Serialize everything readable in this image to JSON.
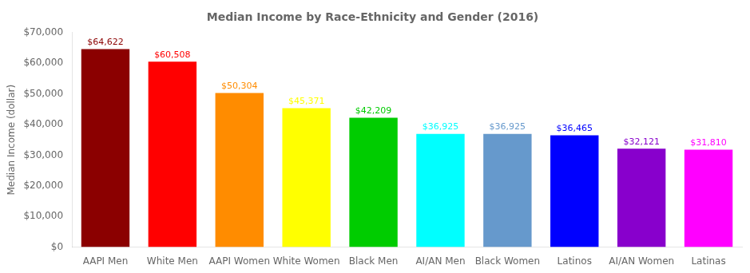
{
  "chart_data": {
    "type": "bar",
    "title": "Median Income by Race-Ethnicity and Gender (2016)",
    "ylabel": "Median Income (dollar)",
    "categories": [
      "AAPI Men",
      "White Men",
      "AAPI Women",
      "White Women",
      "Black Men",
      "AI/AN Men",
      "Black Women",
      "Latinos",
      "AI/AN Women",
      "Latinas"
    ],
    "values": [
      64622,
      60508,
      50304,
      45371,
      42209,
      36925,
      36925,
      36465,
      32121,
      31810
    ],
    "value_labels": [
      "$64,622",
      "$60,508",
      "$50,304",
      "$45,371",
      "$42,209",
      "$36,925",
      "$36,925",
      "$36,465",
      "$32,121",
      "$31,810"
    ],
    "data_labels": true,
    "colors": [
      "#8B0000",
      "#FF0000",
      "#FF8C00",
      "#FFFF00",
      "#00CC00",
      "#00FFFF",
      "#6699CC",
      "#0000FF",
      "#8800CC",
      "#FF00FF"
    ],
    "ylim": [
      0,
      70000
    ],
    "yticks": [
      {
        "value": 0,
        "label": "$0"
      },
      {
        "value": 10000,
        "label": "$10,000"
      },
      {
        "value": 20000,
        "label": "$20,000"
      },
      {
        "value": 30000,
        "label": "$30,000"
      },
      {
        "value": 40000,
        "label": "$40,000"
      },
      {
        "value": 50000,
        "label": "$50,000"
      },
      {
        "value": 60000,
        "label": "$60,000"
      },
      {
        "value": 70000,
        "label": "$70,000"
      }
    ],
    "grid": false
  }
}
